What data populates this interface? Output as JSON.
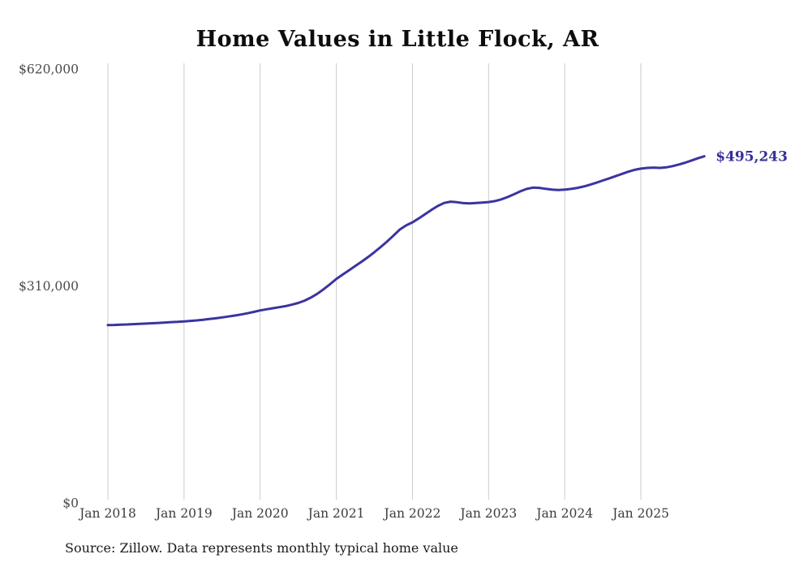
{
  "title": "Home Values in Little Flock, AR",
  "source_note": "Source: Zillow. Data represents monthly typical home value",
  "colors": {
    "line": "#3a34a0",
    "end_label": "#35309b",
    "gridline": "#cccccc",
    "tick_text": "#4a4a4a",
    "xtick_text": "#3c3c3c",
    "title_text": "#0d0d0d",
    "source_text": "#1a1a1a"
  },
  "chart_data": {
    "type": "line",
    "title": "Home Values in Little Flock, AR",
    "xlabel": "",
    "ylabel": "",
    "frequency": "monthly",
    "ylim": [
      0,
      620000
    ],
    "grid": "vertical-only",
    "legend": "none",
    "last_value_label": "$495,243",
    "yticks": [
      {
        "value": 0,
        "label": "$0"
      },
      {
        "value": 310000,
        "label": "$310,000"
      },
      {
        "value": 620000,
        "label": "$620,000"
      }
    ],
    "xticks": [
      {
        "month_index": 0,
        "label": "Jan 2018"
      },
      {
        "month_index": 12,
        "label": "Jan 2019"
      },
      {
        "month_index": 24,
        "label": "Jan 2020"
      },
      {
        "month_index": 36,
        "label": "Jan 2021"
      },
      {
        "month_index": 48,
        "label": "Jan 2022"
      },
      {
        "month_index": 60,
        "label": "Jan 2023"
      },
      {
        "month_index": 72,
        "label": "Jan 2024"
      },
      {
        "month_index": 84,
        "label": "Jan 2025"
      }
    ],
    "x": [
      "2018-01",
      "2018-02",
      "2018-03",
      "2018-04",
      "2018-05",
      "2018-06",
      "2018-07",
      "2018-08",
      "2018-09",
      "2018-10",
      "2018-11",
      "2018-12",
      "2019-01",
      "2019-02",
      "2019-03",
      "2019-04",
      "2019-05",
      "2019-06",
      "2019-07",
      "2019-08",
      "2019-09",
      "2019-10",
      "2019-11",
      "2019-12",
      "2020-01",
      "2020-02",
      "2020-03",
      "2020-04",
      "2020-05",
      "2020-06",
      "2020-07",
      "2020-08",
      "2020-09",
      "2020-10",
      "2020-11",
      "2020-12",
      "2021-01",
      "2021-02",
      "2021-03",
      "2021-04",
      "2021-05",
      "2021-06",
      "2021-07",
      "2021-08",
      "2021-09",
      "2021-10",
      "2021-11",
      "2021-12",
      "2022-01",
      "2022-02",
      "2022-03",
      "2022-04",
      "2022-05",
      "2022-06",
      "2022-07",
      "2022-08",
      "2022-09",
      "2022-10",
      "2022-11",
      "2022-12",
      "2023-01",
      "2023-02",
      "2023-03",
      "2023-04",
      "2023-05",
      "2023-06",
      "2023-07",
      "2023-08",
      "2023-09",
      "2023-10",
      "2023-11",
      "2023-12",
      "2024-01",
      "2024-02",
      "2024-03",
      "2024-04",
      "2024-05",
      "2024-06",
      "2024-07",
      "2024-08",
      "2024-09",
      "2024-10",
      "2024-11",
      "2024-12",
      "2025-01",
      "2025-02",
      "2025-03",
      "2025-04",
      "2025-05",
      "2025-06",
      "2025-07",
      "2025-08",
      "2025-09",
      "2025-10",
      "2025-11"
    ],
    "values": [
      254000,
      254300,
      254700,
      255000,
      255400,
      255800,
      256200,
      256700,
      257200,
      257700,
      258300,
      258700,
      259300,
      260000,
      260800,
      261700,
      262700,
      263800,
      265000,
      266300,
      267700,
      269200,
      270900,
      272900,
      275000,
      276600,
      278100,
      279600,
      281200,
      283200,
      285700,
      289000,
      293400,
      298800,
      305200,
      312400,
      320000,
      326200,
      332300,
      338500,
      344800,
      351300,
      358200,
      365600,
      373500,
      381900,
      390500,
      396500,
      400800,
      406500,
      412600,
      418700,
      424300,
      428600,
      430400,
      429600,
      428300,
      427900,
      428400,
      429100,
      429800,
      431200,
      433600,
      437000,
      441000,
      445100,
      448600,
      450500,
      450100,
      448700,
      447600,
      447100,
      447600,
      448600,
      450100,
      452100,
      454600,
      457500,
      460600,
      463700,
      466800,
      470000,
      473200,
      475800,
      477600,
      478600,
      479100,
      478600,
      479400,
      481200,
      483500,
      486200,
      489300,
      492400,
      495243
    ]
  }
}
